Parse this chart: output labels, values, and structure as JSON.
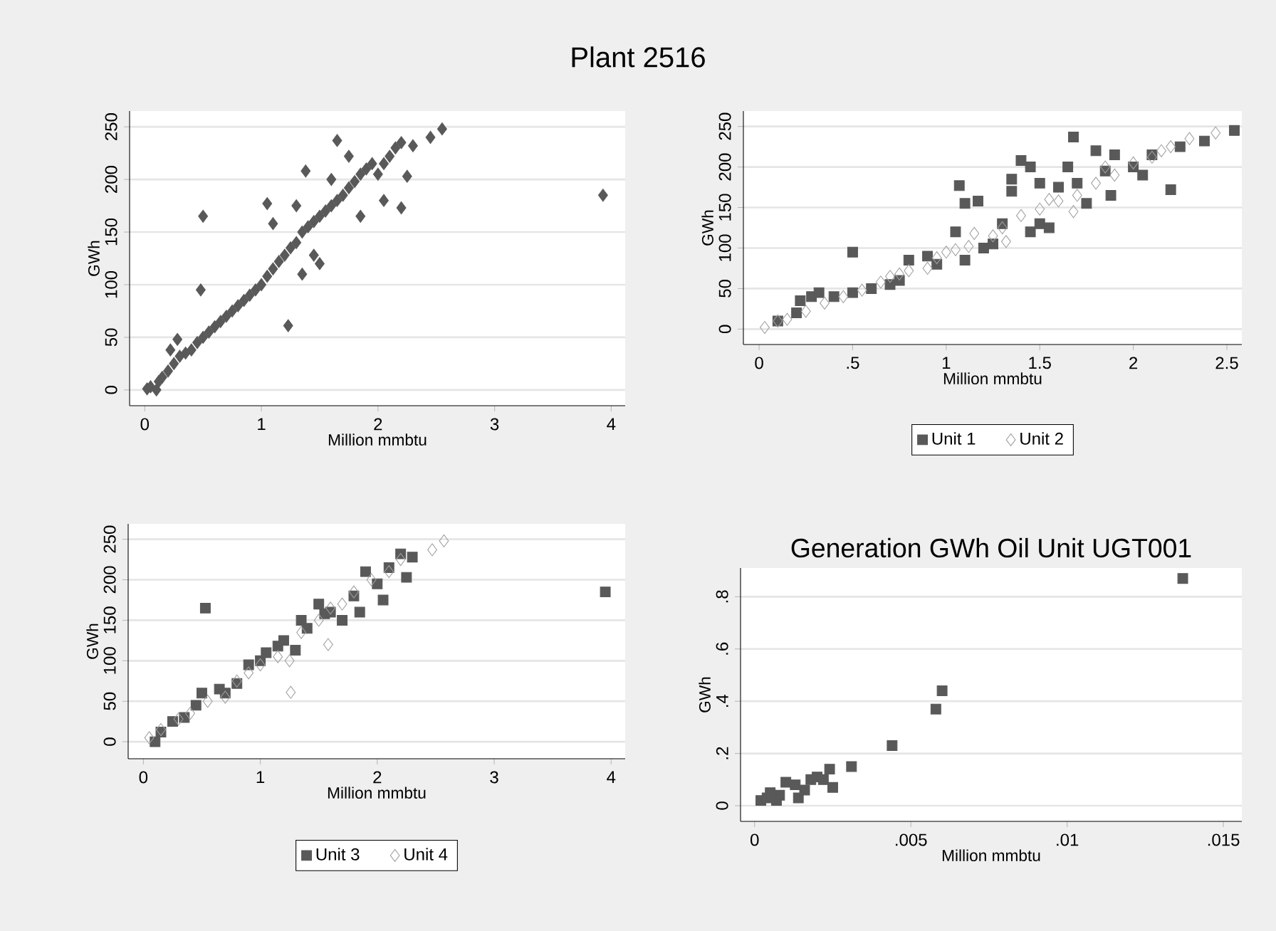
{
  "chart_data": [
    {
      "type": "scatter",
      "title": "Plant 2516",
      "xlabel": "Million mmbtu",
      "ylabel": "GWh",
      "color": "#595959",
      "marker": "diamond",
      "grid": "y",
      "xlim": [
        -0.13,
        4.12
      ],
      "ylim": [
        -15,
        265
      ],
      "xticks": [
        0,
        1,
        2,
        3,
        4
      ],
      "yticks": [
        0,
        50,
        100,
        150,
        200,
        250
      ],
      "x": [
        0.02,
        0.05,
        0.1,
        0.12,
        0.15,
        0.2,
        0.25,
        0.3,
        0.28,
        0.22,
        0.35,
        0.4,
        0.45,
        0.5,
        0.55,
        0.6,
        0.65,
        0.7,
        0.75,
        0.8,
        0.85,
        0.9,
        0.95,
        1.0,
        1.05,
        1.1,
        1.15,
        1.2,
        1.25,
        1.3,
        1.35,
        1.4,
        1.45,
        1.5,
        1.55,
        1.6,
        1.65,
        1.7,
        1.75,
        1.8,
        1.85,
        1.9,
        1.95,
        2.0,
        2.05,
        2.1,
        2.15,
        2.2,
        2.3,
        2.45,
        2.55,
        0.5,
        0.48,
        1.23,
        1.05,
        1.65,
        1.38,
        1.75,
        2.2,
        2.25,
        3.93,
        1.1,
        1.3,
        1.5,
        1.45,
        1.35,
        1.85,
        1.6,
        2.05
      ],
      "values": [
        1,
        3,
        0,
        8,
        12,
        18,
        25,
        32,
        48,
        38,
        35,
        38,
        45,
        50,
        55,
        60,
        65,
        70,
        75,
        80,
        85,
        90,
        95,
        100,
        108,
        115,
        122,
        128,
        135,
        140,
        150,
        155,
        160,
        165,
        170,
        175,
        180,
        185,
        192,
        198,
        205,
        210,
        215,
        205,
        215,
        222,
        230,
        235,
        232,
        240,
        248,
        165,
        95,
        61,
        177,
        237,
        208,
        222,
        173,
        203,
        185,
        158,
        175,
        120,
        128,
        110,
        165,
        200,
        180
      ]
    },
    {
      "type": "scatter",
      "xlabel": "Million mmbtu",
      "ylabel": "GWh",
      "grid": "y",
      "legend": "bottom",
      "xlim": [
        -0.084,
        2.58
      ],
      "ylim": [
        -19,
        269
      ],
      "xticks": [
        0,
        {
          "value": 0.5,
          "label": ".5"
        },
        1,
        1.5,
        2,
        2.5
      ],
      "yticks": [
        0,
        50,
        100,
        150,
        200,
        250
      ],
      "series": [
        {
          "name": "Unit 1",
          "color": "#595959",
          "marker": "square",
          "x": [
            0.1,
            0.2,
            0.22,
            0.28,
            0.32,
            0.4,
            0.5,
            0.5,
            0.6,
            0.7,
            0.75,
            0.8,
            0.9,
            0.95,
            1.05,
            1.07,
            1.1,
            1.1,
            1.17,
            1.2,
            1.25,
            1.3,
            1.35,
            1.35,
            1.4,
            1.45,
            1.45,
            1.5,
            1.5,
            1.55,
            1.6,
            1.65,
            1.68,
            1.7,
            1.75,
            1.8,
            1.85,
            1.88,
            1.9,
            2.0,
            2.05,
            2.1,
            2.2,
            2.25,
            2.38,
            2.54
          ],
          "values": [
            10,
            20,
            35,
            40,
            45,
            40,
            95,
            45,
            50,
            55,
            60,
            85,
            90,
            80,
            120,
            177,
            85,
            155,
            158,
            100,
            105,
            130,
            185,
            170,
            208,
            200,
            120,
            180,
            130,
            125,
            175,
            200,
            237,
            180,
            155,
            220,
            195,
            165,
            215,
            200,
            190,
            215,
            172,
            225,
            232,
            245
          ]
        },
        {
          "name": "Unit 2",
          "color": "#a0a0a0",
          "marker": "diamond",
          "x": [
            0.03,
            0.1,
            0.15,
            0.25,
            0.35,
            0.45,
            0.55,
            0.65,
            0.75,
            0.8,
            0.9,
            0.95,
            1.05,
            1.12,
            1.15,
            1.25,
            1.3,
            1.32,
            1.4,
            1.5,
            1.6,
            1.7,
            1.68,
            1.8,
            1.9,
            2.0,
            2.1,
            2.2,
            2.3,
            2.44,
            1.55,
            1.0,
            0.7,
            1.85,
            2.15
          ],
          "values": [
            2,
            10,
            12,
            22,
            32,
            40,
            48,
            58,
            68,
            72,
            75,
            88,
            98,
            102,
            118,
            115,
            125,
            108,
            140,
            148,
            158,
            165,
            145,
            180,
            190,
            205,
            212,
            225,
            235,
            242,
            160,
            95,
            65,
            200,
            220
          ]
        }
      ]
    },
    {
      "type": "scatter",
      "xlabel": "Million mmbtu",
      "ylabel": "GWh",
      "grid": "y",
      "legend": "bottom",
      "xlim": [
        -0.13,
        4.12
      ],
      "ylim": [
        -21,
        269
      ],
      "xticks": [
        0,
        1,
        2,
        3,
        4
      ],
      "yticks": [
        0,
        50,
        100,
        150,
        200,
        250
      ],
      "series": [
        {
          "name": "Unit 3",
          "color": "#595959",
          "marker": "square",
          "x": [
            0.1,
            0.15,
            0.25,
            0.35,
            0.45,
            0.5,
            0.53,
            0.65,
            0.8,
            0.9,
            1.0,
            1.05,
            1.15,
            1.3,
            1.35,
            1.5,
            1.55,
            1.6,
            1.7,
            1.8,
            1.85,
            1.9,
            2.0,
            2.05,
            2.1,
            2.2,
            2.25,
            2.3,
            3.95,
            1.4,
            0.7,
            1.2
          ],
          "values": [
            0,
            12,
            25,
            30,
            45,
            60,
            165,
            65,
            72,
            95,
            100,
            110,
            118,
            113,
            150,
            170,
            158,
            160,
            150,
            180,
            160,
            210,
            195,
            175,
            215,
            232,
            203,
            228,
            185,
            140,
            60,
            125
          ]
        },
        {
          "name": "Unit 4",
          "color": "#a0a0a0",
          "marker": "diamond",
          "x": [
            0.05,
            0.15,
            0.3,
            0.4,
            0.55,
            0.7,
            0.8,
            1.0,
            1.15,
            1.25,
            1.26,
            1.35,
            1.58,
            1.5,
            1.7,
            1.8,
            1.95,
            2.1,
            2.2,
            2.47,
            2.57,
            1.6,
            0.9
          ],
          "values": [
            5,
            15,
            28,
            35,
            50,
            55,
            75,
            95,
            105,
            100,
            61,
            135,
            120,
            150,
            170,
            185,
            200,
            210,
            225,
            237,
            248,
            165,
            85
          ]
        }
      ]
    },
    {
      "type": "scatter",
      "title": "Generation GWh Oil Unit UGT001",
      "xlabel": "Million mmbtu",
      "ylabel": "GWh",
      "color": "#595959",
      "marker": "square",
      "grid": "y",
      "xlim": [
        -0.00045,
        0.01559
      ],
      "ylim": [
        -0.06,
        0.91
      ],
      "xticks": [
        0,
        {
          "value": 0.005,
          "label": ".005"
        },
        {
          "value": 0.01,
          "label": ".01"
        },
        {
          "value": 0.015,
          "label": ".015"
        }
      ],
      "yticks": [
        0,
        {
          "value": 0.2,
          "label": ".2"
        },
        {
          "value": 0.4,
          "label": ".4"
        },
        {
          "value": 0.6,
          "label": ".6"
        },
        {
          "value": 0.8,
          "label": ".8"
        }
      ],
      "x": [
        0.0002,
        0.0004,
        0.0005,
        0.0007,
        0.0008,
        0.001,
        0.0012,
        0.0013,
        0.0014,
        0.0016,
        0.0018,
        0.002,
        0.0022,
        0.0024,
        0.0025,
        0.0031,
        0.0044,
        0.0058,
        0.006,
        0.0137
      ],
      "values": [
        0.02,
        0.03,
        0.05,
        0.02,
        0.04,
        0.09,
        null,
        0.08,
        0.03,
        0.06,
        0.1,
        0.11,
        0.1,
        0.14,
        0.07,
        0.15,
        0.23,
        0.37,
        0.44,
        0.87
      ]
    }
  ]
}
